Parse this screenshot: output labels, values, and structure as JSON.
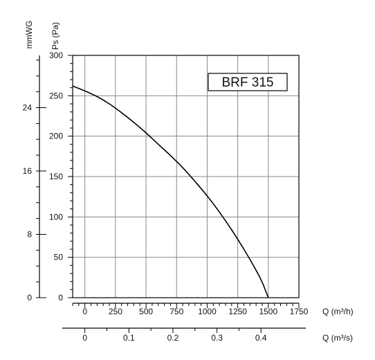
{
  "chart_data": {
    "type": "line",
    "model_label": "BRF 315",
    "y_axis_pa": {
      "label": "Ps (Pa)",
      "range": [
        0,
        300
      ],
      "ticks": [
        0,
        50,
        100,
        150,
        200,
        250,
        300
      ],
      "minor_step": 10
    },
    "y_axis_mmwg": {
      "label": "mmWG",
      "range": [
        0,
        30.6
      ],
      "ticks": [
        0,
        8,
        16,
        24
      ],
      "minor_step": 2
    },
    "x_axis_m3h": {
      "label": "Q (m³/h)",
      "range": [
        -100,
        1750
      ],
      "ticks": [
        0,
        250,
        500,
        750,
        1000,
        1250,
        1500,
        1750
      ],
      "minor_step": 50
    },
    "x_axis_m3s": {
      "label": "Q (m³/s)",
      "range": [
        -0.02778,
        0.4861
      ],
      "ticks": [
        0,
        0.1,
        0.2,
        0.3,
        0.4
      ],
      "tick_labels": [
        "0",
        "0.1",
        "0.2",
        "0.3",
        "0.4"
      ]
    },
    "grid": true,
    "series": [
      {
        "x": [
          -100,
          0,
          100,
          200,
          300,
          400,
          500,
          600,
          700,
          800,
          900,
          1000,
          1100,
          1200,
          1300,
          1400,
          1450,
          1500
        ],
        "y": [
          262,
          256,
          249,
          240,
          229,
          217,
          204,
          190,
          176,
          161,
          144,
          126,
          106,
          84,
          60,
          34,
          19,
          0
        ]
      }
    ]
  }
}
